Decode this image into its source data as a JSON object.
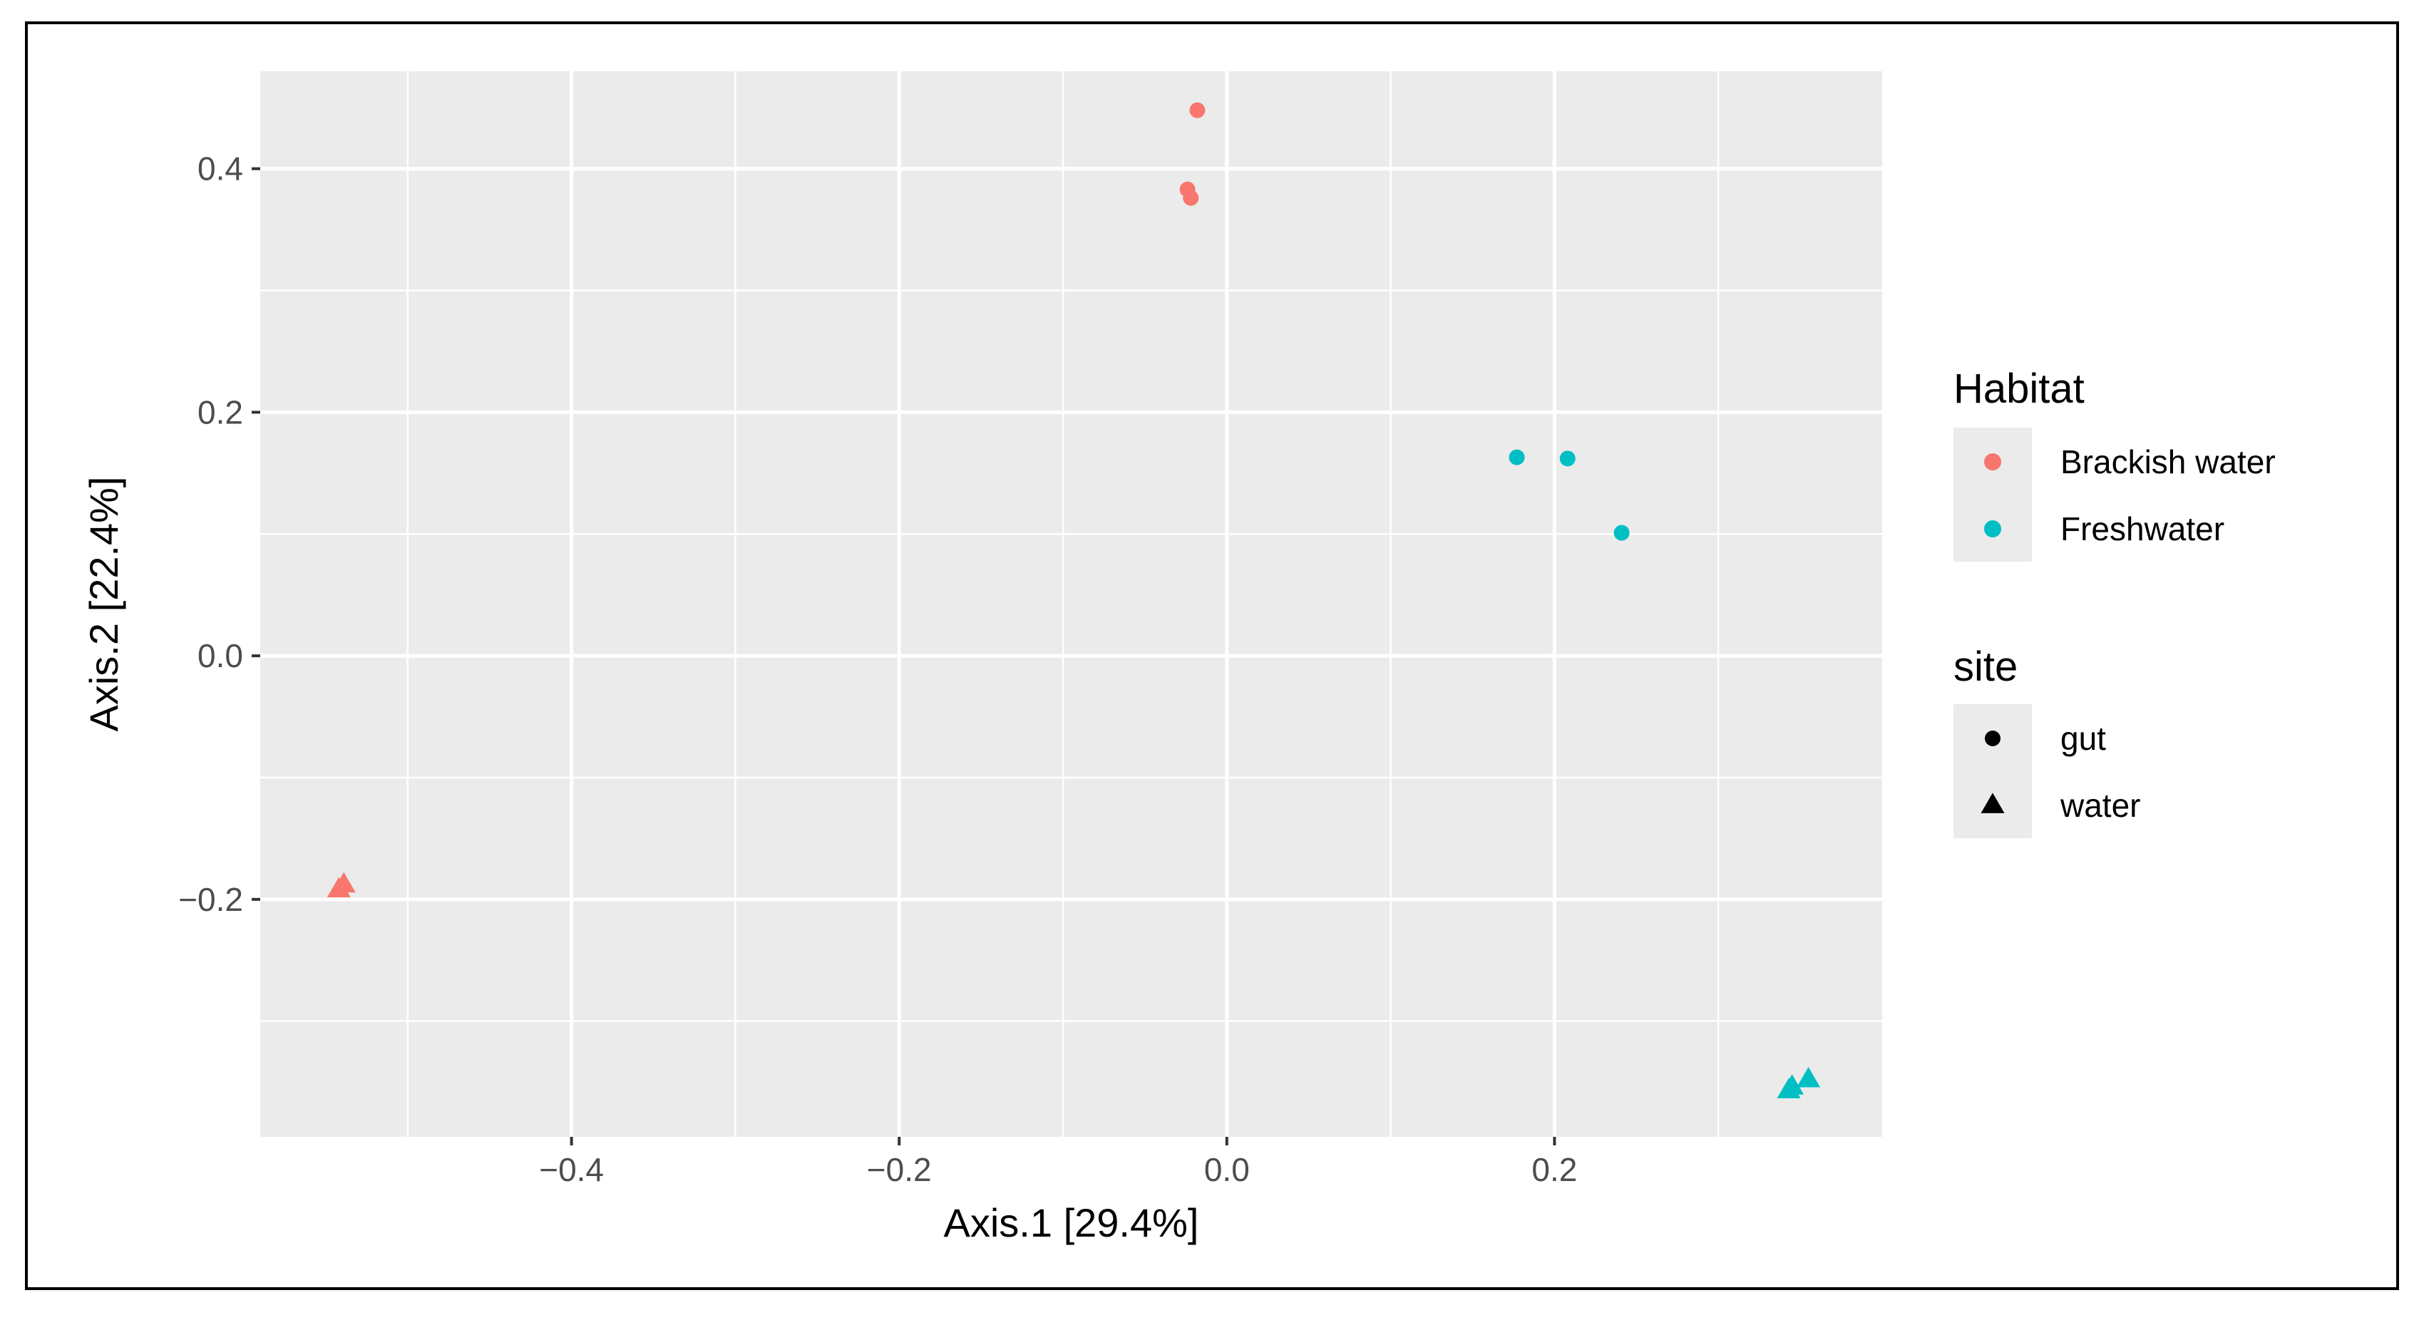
{
  "chart_data": {
    "type": "scatter",
    "xlabel": "Axis.1   [29.4%]",
    "ylabel": "Axis.2   [22.4%]",
    "xlim": [
      -0.59,
      0.4
    ],
    "ylim": [
      -0.395,
      0.48
    ],
    "x_ticks": [
      -0.4,
      -0.2,
      0.0,
      0.2
    ],
    "x_tick_labels": [
      "−0.4",
      "−0.2",
      "0.0",
      "0.2"
    ],
    "y_ticks": [
      -0.2,
      0.0,
      0.2,
      0.4
    ],
    "y_tick_labels": [
      "−0.2",
      "0.0",
      "0.2",
      "0.4"
    ],
    "grid": true,
    "legend_position": "right",
    "legends": [
      {
        "title": "Habitat",
        "key": "color",
        "entries": [
          {
            "label": "Brackish water",
            "color": "#F8766D"
          },
          {
            "label": "Freshwater",
            "color": "#00BFC4"
          }
        ]
      },
      {
        "title": "site",
        "key": "shape",
        "entries": [
          {
            "label": "gut",
            "shape": "circle"
          },
          {
            "label": "water",
            "shape": "triangle"
          }
        ]
      }
    ],
    "points": [
      {
        "x": -0.018,
        "y": 0.448,
        "habitat": "Brackish water",
        "site": "gut"
      },
      {
        "x": -0.024,
        "y": 0.383,
        "habitat": "Brackish water",
        "site": "gut"
      },
      {
        "x": -0.022,
        "y": 0.376,
        "habitat": "Brackish water",
        "site": "gut"
      },
      {
        "x": -0.539,
        "y": -0.188,
        "habitat": "Brackish water",
        "site": "water"
      },
      {
        "x": -0.542,
        "y": -0.192,
        "habitat": "Brackish water",
        "site": "water"
      },
      {
        "x": 0.177,
        "y": 0.163,
        "habitat": "Freshwater",
        "site": "gut"
      },
      {
        "x": 0.208,
        "y": 0.162,
        "habitat": "Freshwater",
        "site": "gut"
      },
      {
        "x": 0.241,
        "y": 0.101,
        "habitat": "Freshwater",
        "site": "gut"
      },
      {
        "x": 0.345,
        "y": -0.354,
        "habitat": "Freshwater",
        "site": "water"
      },
      {
        "x": 0.355,
        "y": -0.348,
        "habitat": "Freshwater",
        "site": "water"
      },
      {
        "x": 0.343,
        "y": -0.357,
        "habitat": "Freshwater",
        "site": "water"
      }
    ]
  }
}
